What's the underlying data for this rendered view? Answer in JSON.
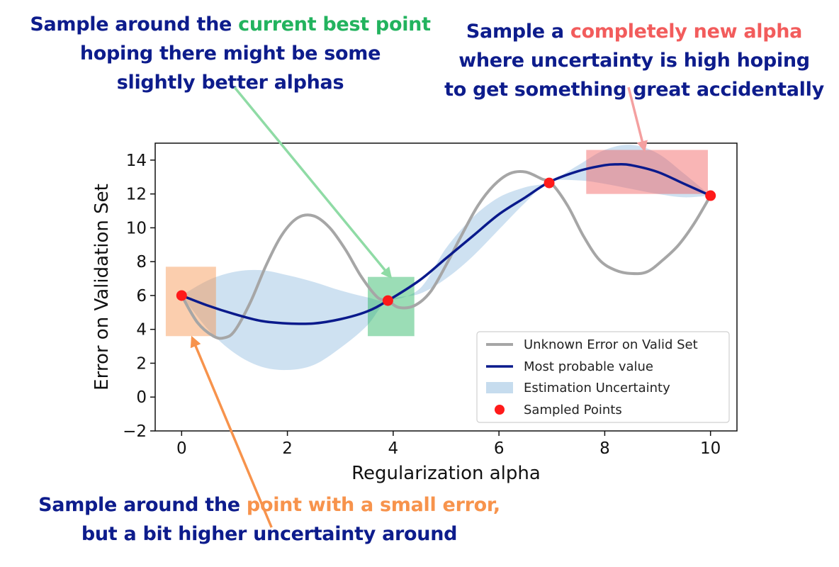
{
  "colors": {
    "callout_text": "#0d1c8c",
    "best_highlight": "#22b35e",
    "new_highlight": "#f25c5c",
    "small_highlight": "#f7934c",
    "unknown_curve": "#a6a6a6",
    "probable_curve": "#0a1a8c",
    "uncertainty_band": "#c6dcee",
    "sampled_point": "#ff1a1a"
  },
  "callouts": {
    "best": {
      "prefix": "Sample around the ",
      "highlight": "current best point",
      "line2": "hoping there might be some",
      "line3": "slightly better alphas"
    },
    "new": {
      "prefix": "Sample a ",
      "highlight": "completely new alpha",
      "line2": "where uncertainty is high hoping",
      "line3": "to get something great accidentally"
    },
    "small": {
      "prefix": "Sample around the ",
      "highlight": "point with a small error,",
      "line2": "but a bit higher uncertainty around"
    }
  },
  "chart_data": {
    "type": "line",
    "xlabel": "Regularization alpha",
    "ylabel": "Error on Validation Set",
    "xlim": [
      -0.5,
      10.5
    ],
    "ylim": [
      -2,
      15
    ],
    "xticks": [
      0,
      2,
      4,
      6,
      8,
      10
    ],
    "yticks": [
      -2,
      0,
      2,
      4,
      6,
      8,
      10,
      12,
      14
    ],
    "ytick_labels": [
      "−2",
      "0",
      "2",
      "4",
      "6",
      "8",
      "10",
      "12",
      "14"
    ],
    "grid": false,
    "legend_position": "lower-right",
    "legend": {
      "unknown": "Unknown Error on Valid Set",
      "probable": "Most probable value",
      "uncertainty": "Estimation Uncertainty",
      "sampled": "Sampled Points"
    },
    "series": [
      {
        "name": "Unknown Error on Valid Set",
        "x": [
          0,
          0.3,
          0.6,
          0.8,
          1.0,
          1.3,
          1.6,
          1.9,
          2.2,
          2.5,
          2.8,
          3.1,
          3.4,
          3.7,
          3.9,
          4.1,
          4.4,
          4.7,
          5.0,
          5.3,
          5.6,
          5.9,
          6.2,
          6.5,
          6.8,
          7.0,
          7.3,
          7.6,
          7.9,
          8.2,
          8.5,
          8.8,
          9.1,
          9.4,
          9.7,
          10.0
        ],
        "y": [
          6.0,
          4.4,
          3.6,
          3.5,
          3.9,
          5.6,
          7.8,
          9.6,
          10.6,
          10.7,
          10.0,
          8.7,
          7.1,
          5.9,
          5.7,
          5.3,
          5.4,
          6.2,
          7.8,
          9.6,
          11.3,
          12.5,
          13.2,
          13.3,
          12.9,
          12.6,
          11.3,
          9.5,
          8.1,
          7.5,
          7.3,
          7.4,
          8.1,
          9.0,
          10.3,
          11.9
        ]
      },
      {
        "name": "Most probable value",
        "x": [
          0,
          0.5,
          1.0,
          1.5,
          2.0,
          2.5,
          3.0,
          3.5,
          3.9,
          4.5,
          5.0,
          5.5,
          6.0,
          6.5,
          6.95,
          7.5,
          8.0,
          8.25,
          8.5,
          9.0,
          9.5,
          10.0
        ],
        "y": [
          6.0,
          5.4,
          4.9,
          4.5,
          4.35,
          4.35,
          4.6,
          5.05,
          5.7,
          6.9,
          8.2,
          9.5,
          10.8,
          11.8,
          12.7,
          13.35,
          13.7,
          13.75,
          13.7,
          13.3,
          12.6,
          11.9
        ]
      }
    ],
    "uncertainty_band": {
      "x": [
        0,
        0.5,
        1.0,
        1.5,
        2.0,
        2.5,
        3.0,
        3.5,
        3.9,
        4.5,
        5.0,
        5.5,
        6.0,
        6.5,
        6.95,
        7.5,
        8.0,
        8.5,
        9.0,
        9.5,
        10.0
      ],
      "upper": [
        6.0,
        6.9,
        7.4,
        7.5,
        7.2,
        6.8,
        6.3,
        5.9,
        5.7,
        6.4,
        8.8,
        10.6,
        11.8,
        12.4,
        12.7,
        13.7,
        14.6,
        14.9,
        14.4,
        13.2,
        11.9
      ],
      "lower": [
        6.0,
        4.0,
        2.6,
        1.8,
        1.6,
        1.9,
        2.9,
        4.2,
        5.7,
        6.1,
        7.0,
        8.3,
        9.9,
        11.5,
        12.7,
        12.8,
        12.6,
        12.3,
        12.0,
        11.8,
        11.9
      ]
    },
    "sampled_points": [
      {
        "x": 0,
        "y": 6.0
      },
      {
        "x": 3.9,
        "y": 5.7
      },
      {
        "x": 6.95,
        "y": 12.65
      },
      {
        "x": 10.0,
        "y": 11.9
      }
    ],
    "highlight_regions": [
      {
        "name": "small-error-region",
        "x": [
          -0.3,
          0.65
        ],
        "y": [
          3.6,
          7.7
        ],
        "color": "#f7934c"
      },
      {
        "name": "best-point-region",
        "x": [
          3.52,
          4.4
        ],
        "y": [
          3.6,
          7.1
        ],
        "color": "#22b35e"
      },
      {
        "name": "new-alpha-region",
        "x": [
          7.65,
          9.95
        ],
        "y": [
          12.0,
          14.6
        ],
        "color": "#f25c5c"
      }
    ],
    "annotation_arrows": [
      {
        "name": "best-point-arrow",
        "from": [
          1.0,
          18.3
        ],
        "to": [
          3.95,
          7.1
        ],
        "color": "#8fdba5"
      },
      {
        "name": "new-alpha-arrow",
        "from": [
          8.45,
          18.3
        ],
        "to": [
          8.75,
          14.6
        ],
        "color": "#f4a0a0"
      },
      {
        "name": "small-error-arrow",
        "from": [
          1.7,
          -7.7
        ],
        "to": [
          0.2,
          3.5
        ],
        "color": "#f7934c"
      }
    ]
  }
}
